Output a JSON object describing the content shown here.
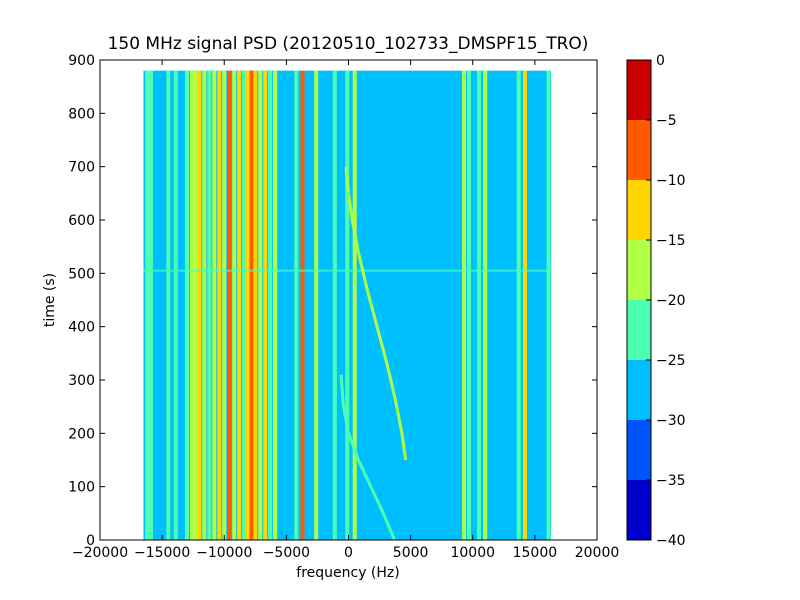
{
  "chart_data": {
    "type": "heatmap",
    "title": "150 MHz signal PSD (20120510_102733_DMSPF15_TRO)",
    "xlabel": "frequency (Hz)",
    "ylabel": "time (s)",
    "xlim": [
      -20000,
      20000
    ],
    "ylim": [
      0,
      900
    ],
    "xticks": [
      -20000,
      -15000,
      -10000,
      -5000,
      0,
      5000,
      10000,
      15000,
      20000
    ],
    "xtick_labels": [
      "−20000",
      "−15000",
      "−10000",
      "−5000",
      "0",
      "5000",
      "10000",
      "15000",
      "20000"
    ],
    "yticks": [
      0,
      100,
      200,
      300,
      400,
      500,
      600,
      700,
      800,
      900
    ],
    "ytick_labels": [
      "0",
      "100",
      "200",
      "300",
      "400",
      "500",
      "600",
      "700",
      "800",
      "900"
    ],
    "data_extent": {
      "x": [
        -16500,
        16300
      ],
      "y": [
        0,
        880
      ]
    },
    "background_level": -27.5,
    "colorbar": {
      "levels": [
        -40,
        -35,
        -30,
        -25,
        -20,
        -15,
        -10,
        -5,
        0
      ],
      "tick_labels": [
        "−40",
        "−35",
        "−30",
        "−25",
        "−20",
        "−15",
        "−10",
        "−5",
        "0"
      ],
      "colors": [
        "#0000cc",
        "#0055ff",
        "#00bfff",
        "#4cffb0",
        "#b0ff47",
        "#ffd500",
        "#ff5a00",
        "#cc0000"
      ]
    },
    "vertical_lines": [
      {
        "x": -16200,
        "level": -22.5
      },
      {
        "x": -15900,
        "level": -22.5
      },
      {
        "x": -14500,
        "level": -22.5
      },
      {
        "x": -13900,
        "level": -22.5
      },
      {
        "x": -13000,
        "level": -22.5
      },
      {
        "x": -12600,
        "level": -17.5
      },
      {
        "x": -12300,
        "level": -17.5
      },
      {
        "x": -12000,
        "level": -12.5
      },
      {
        "x": -11600,
        "level": -17.5
      },
      {
        "x": -11200,
        "level": -22.5
      },
      {
        "x": -10800,
        "level": -17.5
      },
      {
        "x": -10400,
        "level": -12.5
      },
      {
        "x": -10000,
        "level": -17.5
      },
      {
        "x": -9600,
        "level": -7.5
      },
      {
        "x": -9200,
        "level": -17.5
      },
      {
        "x": -8800,
        "level": -12.5
      },
      {
        "x": -8400,
        "level": -22.5
      },
      {
        "x": -8100,
        "level": -12.5
      },
      {
        "x": -7800,
        "level": -7.5
      },
      {
        "x": -7500,
        "level": -12.5
      },
      {
        "x": -7100,
        "level": -17.5
      },
      {
        "x": -6700,
        "level": -12.5
      },
      {
        "x": -6300,
        "level": -22.5
      },
      {
        "x": -5900,
        "level": -17.5
      },
      {
        "x": -4200,
        "level": -22.5
      },
      {
        "x": -3700,
        "level": -7.5
      },
      {
        "x": -2600,
        "level": -17.5
      },
      {
        "x": -1100,
        "level": -22.5
      },
      {
        "x": -100,
        "level": -22.5
      },
      {
        "x": 500,
        "level": -17.5
      },
      {
        "x": 9300,
        "level": -17.5
      },
      {
        "x": 9700,
        "level": -22.5
      },
      {
        "x": 10500,
        "level": -22.5
      },
      {
        "x": 11000,
        "level": -17.5
      },
      {
        "x": 13700,
        "level": -22.5
      },
      {
        "x": 14200,
        "level": -12.5
      },
      {
        "x": 16100,
        "level": -22.5
      }
    ],
    "drifting_traces": [
      {
        "level": -17.5,
        "x": [
          -200,
          0,
          300,
          800,
          1500,
          2300,
          3100,
          3800,
          4300,
          4600
        ],
        "y": [
          700,
          650,
          600,
          540,
          470,
          400,
          330,
          260,
          200,
          150
        ]
      },
      {
        "level": -22.5,
        "x": [
          -600,
          -400,
          0,
          800,
          1800,
          2800,
          3700
        ],
        "y": [
          310,
          250,
          200,
          150,
          100,
          50,
          0
        ]
      }
    ],
    "horizontal_lines": [
      {
        "y": 505,
        "level": -22.5
      }
    ]
  }
}
